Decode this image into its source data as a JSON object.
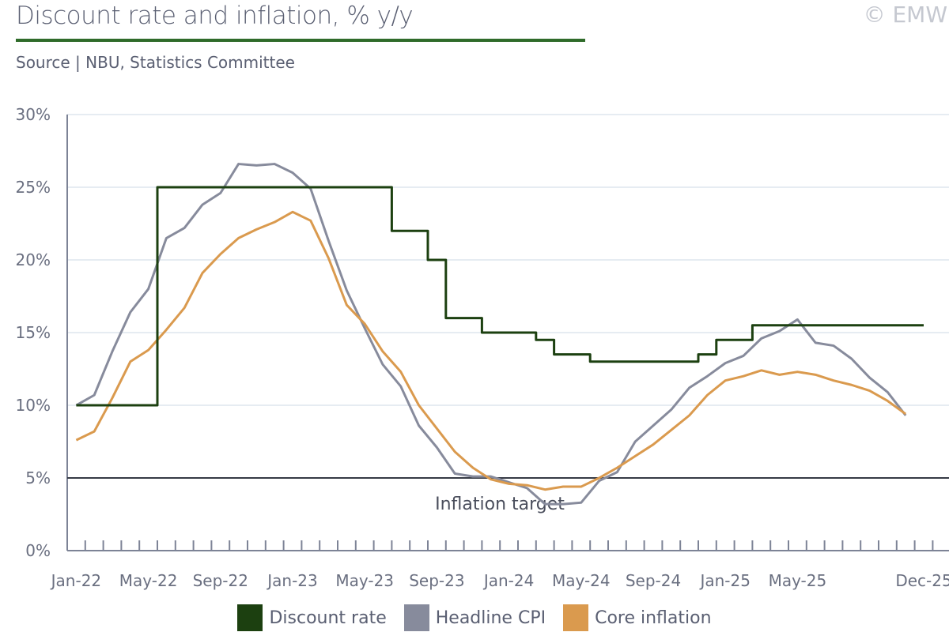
{
  "header": {
    "title": "Discount rate and inflation, % y/y",
    "source": "Source | NBU, Statistics Committee",
    "copyright": "© EMW"
  },
  "chart_data": {
    "type": "line",
    "title": "Discount rate and inflation, % y/y",
    "xlabel": "",
    "ylabel": "",
    "ylim": [
      0,
      30
    ],
    "yticks": [
      "0%",
      "5%",
      "10%",
      "15%",
      "20%",
      "25%",
      "30%"
    ],
    "x_start": "Jan-22",
    "n_months": 48,
    "xtick_labels": [
      {
        "label": "Jan-22",
        "month": 0
      },
      {
        "label": "May-22",
        "month": 4
      },
      {
        "label": "Sep-22",
        "month": 8
      },
      {
        "label": "Jan-23",
        "month": 12
      },
      {
        "label": "May-23",
        "month": 16
      },
      {
        "label": "Sep-23",
        "month": 20
      },
      {
        "label": "Jan-24",
        "month": 24
      },
      {
        "label": "May-24",
        "month": 28
      },
      {
        "label": "Sep-24",
        "month": 32
      },
      {
        "label": "Jan-25",
        "month": 36
      },
      {
        "label": "May-25",
        "month": 40
      },
      {
        "label": "Dec-25",
        "month": 47
      }
    ],
    "grid": true,
    "legend_position": "bottom-center",
    "annotations": [
      {
        "text": "Inflation target",
        "value": 5
      }
    ],
    "series": [
      {
        "name": "Discount rate",
        "color": "#1c4010",
        "style": "step",
        "values": [
          10,
          10,
          10,
          10,
          10,
          25,
          25,
          25,
          25,
          25,
          25,
          25,
          25,
          25,
          25,
          25,
          25,
          25,
          22,
          22,
          20,
          16,
          16,
          15,
          15,
          15,
          14.5,
          13.5,
          13.5,
          13,
          13,
          13,
          13,
          13,
          13,
          13.5,
          14.5,
          14.5,
          15.5,
          15.5,
          15.5,
          15.5,
          15.5,
          15.5,
          15.5,
          15.5,
          15.5,
          15.5
        ]
      },
      {
        "name": "Headline CPI",
        "color": "#878b9c",
        "style": "line",
        "values": [
          10.0,
          10.7,
          13.7,
          16.4,
          18.0,
          21.5,
          22.2,
          23.8,
          24.6,
          26.6,
          26.5,
          26.6,
          26.0,
          24.9,
          21.3,
          17.9,
          15.3,
          12.8,
          11.3,
          8.6,
          7.1,
          5.3,
          5.1,
          5.1,
          4.7,
          4.3,
          3.2,
          3.2,
          3.3,
          4.8,
          5.4,
          7.5,
          8.6,
          9.7,
          11.2,
          12.0,
          12.9,
          13.4,
          14.6,
          15.1,
          15.9,
          14.3,
          14.1,
          13.2,
          11.9,
          10.9,
          9.3
        ]
      },
      {
        "name": "Core inflation",
        "color": "#da9a4e",
        "style": "line",
        "values": [
          7.6,
          8.2,
          10.5,
          13.0,
          13.8,
          15.2,
          16.7,
          19.1,
          20.4,
          21.5,
          22.1,
          22.6,
          23.3,
          22.7,
          20.1,
          16.9,
          15.6,
          13.7,
          12.3,
          10.0,
          8.4,
          6.8,
          5.7,
          4.9,
          4.6,
          4.5,
          4.2,
          4.4,
          4.4,
          5.0,
          5.7,
          6.5,
          7.3,
          8.3,
          9.3,
          10.7,
          11.7,
          12.0,
          12.4,
          12.1,
          12.3,
          12.1,
          11.7,
          11.4,
          11.0,
          10.3,
          9.4
        ]
      }
    ]
  }
}
